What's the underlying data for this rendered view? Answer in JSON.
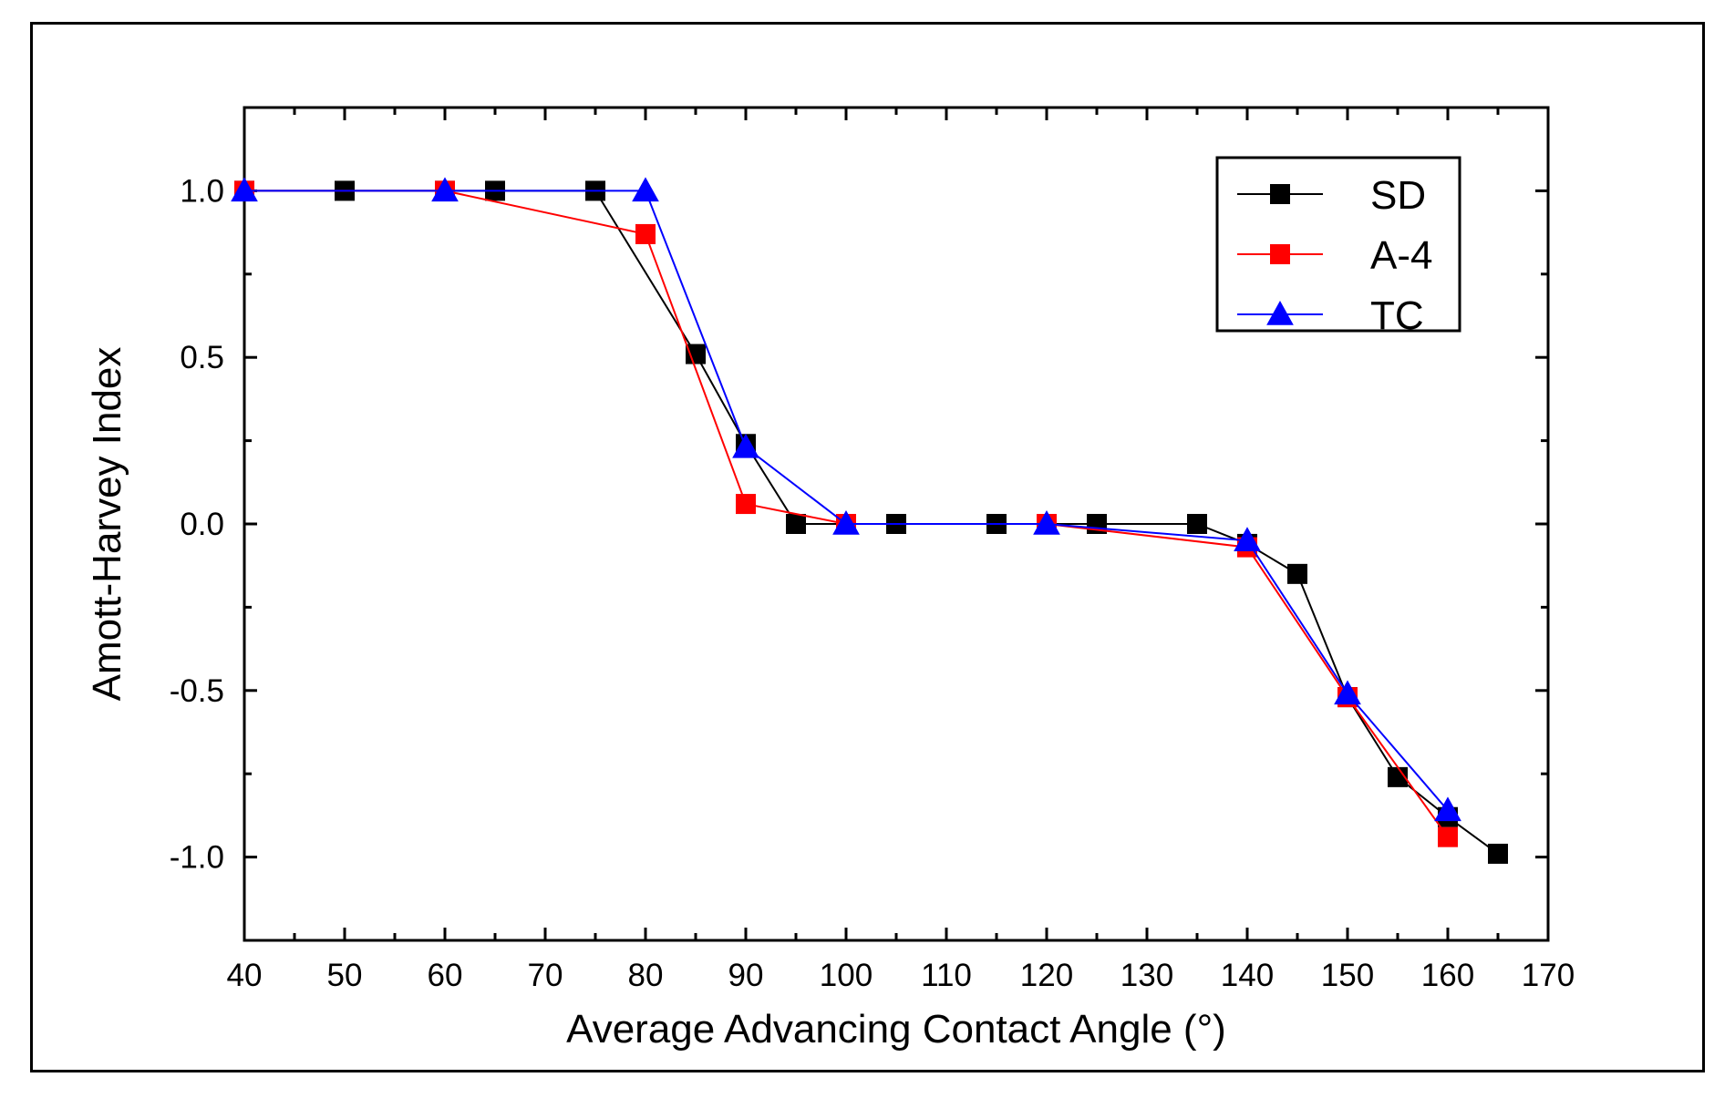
{
  "chart_data": {
    "type": "line",
    "title": "",
    "xlabel": "Average Advancing Contact Angle (°)",
    "ylabel": "Amott-Harvey Index",
    "xlim": [
      40,
      170
    ],
    "ylim": [
      -1.25,
      1.25
    ],
    "x_ticks": [
      40,
      50,
      60,
      70,
      80,
      90,
      100,
      110,
      120,
      130,
      140,
      150,
      160,
      170
    ],
    "x_tick_labels": [
      "40",
      "50",
      "60",
      "70",
      "80",
      "90",
      "100",
      "110",
      "120",
      "130",
      "140",
      "150",
      "160",
      "170"
    ],
    "y_ticks": [
      1.0,
      0.5,
      0.0,
      -0.5,
      -1.0
    ],
    "y_tick_labels": [
      "1.0",
      "0.5",
      "0.0",
      "-0.5",
      "-1.0"
    ],
    "grid": false,
    "legend_position": "top-right",
    "series": [
      {
        "name": "SD",
        "color": "#000000",
        "marker": "square",
        "x": [
          40,
          50,
          60,
          65,
          75,
          85,
          90,
          95,
          100,
          105,
          115,
          120,
          125,
          135,
          140,
          145,
          150,
          155,
          160,
          165
        ],
        "y": [
          1.0,
          1.0,
          1.0,
          1.0,
          1.0,
          0.51,
          0.24,
          0.0,
          0.0,
          0.0,
          0.0,
          0.0,
          0.0,
          0.0,
          -0.06,
          -0.15,
          -0.52,
          -0.76,
          -0.88,
          -0.99
        ]
      },
      {
        "name": "A-4",
        "color": "#ff0000",
        "marker": "square",
        "x": [
          40,
          60,
          80,
          90,
          100,
          120,
          140,
          150,
          160
        ],
        "y": [
          1.0,
          1.0,
          0.87,
          0.06,
          0.0,
          0.0,
          -0.07,
          -0.52,
          -0.94
        ]
      },
      {
        "name": "TC",
        "color": "#0000ff",
        "marker": "triangle",
        "x": [
          40,
          60,
          80,
          90,
          100,
          120,
          140,
          150,
          160
        ],
        "y": [
          1.0,
          1.0,
          1.0,
          0.23,
          0.0,
          0.0,
          -0.05,
          -0.51,
          -0.86
        ]
      }
    ]
  }
}
